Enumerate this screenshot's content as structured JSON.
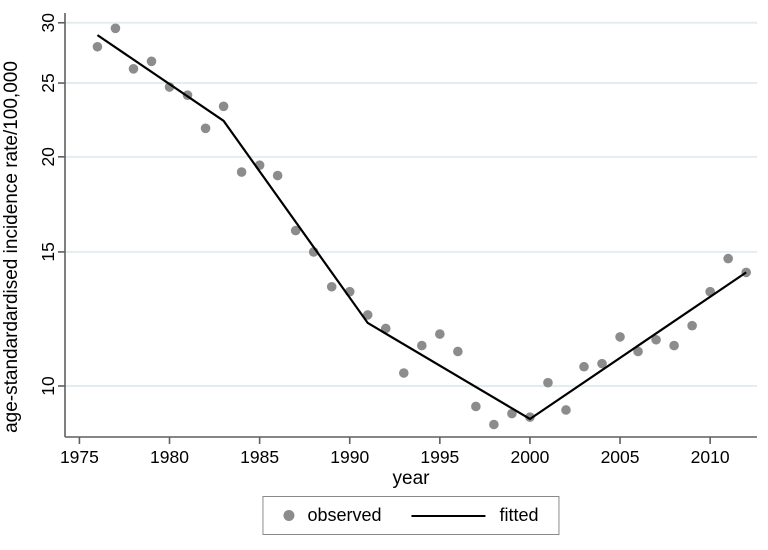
{
  "axes": {
    "x_title": "year",
    "y_title": "age-standardardised incidence rate/100,000"
  },
  "legend": {
    "observed_label": "observed",
    "fitted_label": "fitted"
  },
  "chart_data": {
    "type": "scatter",
    "title": "",
    "xlabel": "year",
    "ylabel": "age-standardardised incidence rate/100,000",
    "x_scale": "linear",
    "y_scale": "log",
    "x_range": [
      1974.2,
      2012.6
    ],
    "y_range": [
      8.57,
      30.9
    ],
    "x_ticks": [
      1975,
      1980,
      1985,
      1990,
      1995,
      2000,
      2005,
      2010
    ],
    "y_ticks": [
      10,
      15,
      20,
      25,
      30
    ],
    "grid": "horizontal-only",
    "legend_position": "bottom-center",
    "colors": {
      "observed": "#8c8c8c",
      "fitted": "#000000",
      "grid": "#e3edf0",
      "axis": "#5f5f5f",
      "text": "#000000",
      "background": "#ffffff"
    },
    "series": [
      {
        "name": "observed",
        "kind": "scatter",
        "points": [
          [
            1976,
            27.9
          ],
          [
            1977,
            29.5
          ],
          [
            1978,
            26.1
          ],
          [
            1979,
            26.7
          ],
          [
            1980,
            24.7
          ],
          [
            1981,
            24.1
          ],
          [
            1982,
            21.8
          ],
          [
            1983,
            23.3
          ],
          [
            1984,
            19.1
          ],
          [
            1985,
            19.5
          ],
          [
            1986,
            18.9
          ],
          [
            1987,
            16.0
          ],
          [
            1988,
            15.0
          ],
          [
            1989,
            13.5
          ],
          [
            1990,
            13.3
          ],
          [
            1991,
            12.4
          ],
          [
            1992,
            11.9
          ],
          [
            1993,
            10.4
          ],
          [
            1994,
            11.3
          ],
          [
            1995,
            11.7
          ],
          [
            1996,
            11.1
          ],
          [
            1997,
            9.4
          ],
          [
            1998,
            8.9
          ],
          [
            1999,
            9.2
          ],
          [
            2000,
            9.1
          ],
          [
            2001,
            10.1
          ],
          [
            2002,
            9.3
          ],
          [
            2003,
            10.6
          ],
          [
            2004,
            10.7
          ],
          [
            2005,
            11.6
          ],
          [
            2006,
            11.1
          ],
          [
            2007,
            11.5
          ],
          [
            2008,
            11.3
          ],
          [
            2009,
            12.0
          ],
          [
            2010,
            13.3
          ],
          [
            2011,
            14.7
          ],
          [
            2012,
            14.1
          ]
        ]
      },
      {
        "name": "fitted",
        "kind": "line",
        "points": [
          [
            1976,
            28.9
          ],
          [
            1983,
            22.3
          ],
          [
            1991,
            12.1
          ],
          [
            2000,
            9.05
          ],
          [
            2012,
            14.1
          ]
        ]
      }
    ]
  }
}
